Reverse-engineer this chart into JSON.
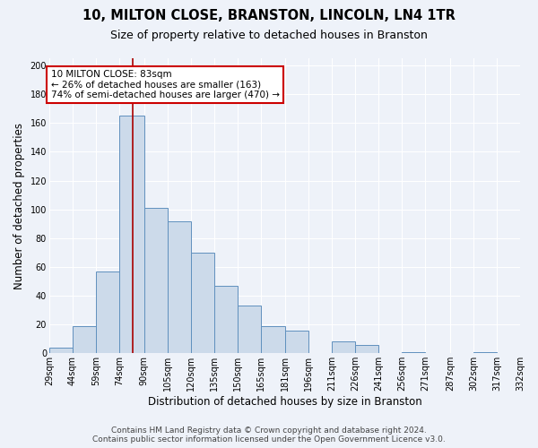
{
  "title": "10, MILTON CLOSE, BRANSTON, LINCOLN, LN4 1TR",
  "subtitle": "Size of property relative to detached houses in Branston",
  "xlabel": "Distribution of detached houses by size in Branston",
  "ylabel": "Number of detached properties",
  "bin_edges": [
    29,
    44,
    59,
    74,
    90,
    105,
    120,
    135,
    150,
    165,
    181,
    196,
    211,
    226,
    241,
    256,
    271,
    287,
    302,
    317,
    332
  ],
  "bin_labels": [
    "29sqm",
    "44sqm",
    "59sqm",
    "74sqm",
    "90sqm",
    "105sqm",
    "120sqm",
    "135sqm",
    "150sqm",
    "165sqm",
    "181sqm",
    "196sqm",
    "211sqm",
    "226sqm",
    "241sqm",
    "256sqm",
    "271sqm",
    "287sqm",
    "302sqm",
    "317sqm",
    "332sqm"
  ],
  "counts": [
    4,
    19,
    57,
    165,
    101,
    92,
    70,
    47,
    33,
    19,
    16,
    0,
    8,
    6,
    0,
    1,
    0,
    0,
    1,
    0
  ],
  "bar_color": "#ccdaea",
  "bar_edge_color": "#6090be",
  "property_size": 83,
  "marker_line_color": "#aa0000",
  "annotation_text_line1": "10 MILTON CLOSE: 83sqm",
  "annotation_text_line2": "← 26% of detached houses are smaller (163)",
  "annotation_text_line3": "74% of semi-detached houses are larger (470) →",
  "annotation_box_facecolor": "#ffffff",
  "annotation_box_edgecolor": "#cc0000",
  "ylim": [
    0,
    205
  ],
  "yticks": [
    0,
    20,
    40,
    60,
    80,
    100,
    120,
    140,
    160,
    180,
    200
  ],
  "footer_line1": "Contains HM Land Registry data © Crown copyright and database right 2024.",
  "footer_line2": "Contains public sector information licensed under the Open Government Licence v3.0.",
  "bg_color": "#eef2f9",
  "plot_bg_color": "#eef2f9",
  "grid_color": "#ffffff",
  "title_fontsize": 10.5,
  "subtitle_fontsize": 9,
  "axis_label_fontsize": 8.5,
  "tick_fontsize": 7,
  "annotation_fontsize": 7.5,
  "footer_fontsize": 6.5
}
